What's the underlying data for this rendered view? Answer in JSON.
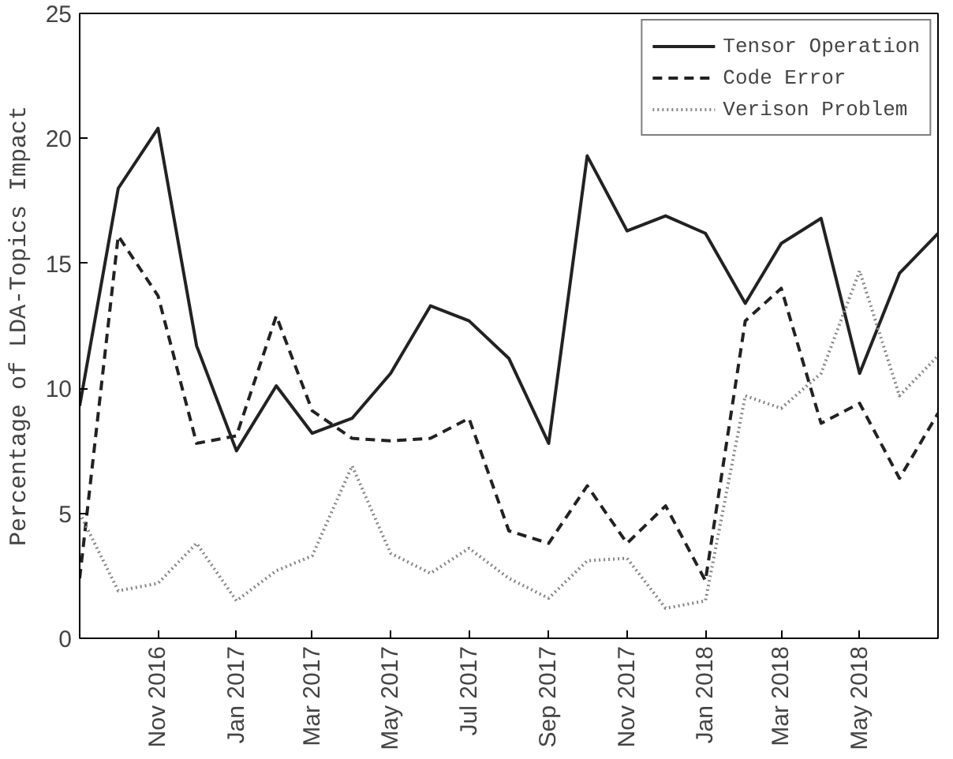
{
  "chart_data": {
    "type": "line",
    "ylabel": "Percentage of LDA-Topics Impact",
    "x": [
      "2016-09",
      "2016-10",
      "2016-11",
      "2016-12",
      "2017-01",
      "2017-02",
      "2017-03",
      "2017-04",
      "2017-05",
      "2017-06",
      "2017-07",
      "2017-08",
      "2017-09",
      "2017-10",
      "2017-11",
      "2017-12",
      "2018-01",
      "2018-02",
      "2018-03",
      "2018-04",
      "2018-05",
      "2018-06",
      "2018-07"
    ],
    "series": [
      {
        "name": "Tensor Operation",
        "color": "#222222",
        "line_style": "solid",
        "values": [
          9.3,
          18.0,
          20.4,
          11.7,
          7.5,
          10.1,
          8.2,
          8.8,
          10.6,
          13.3,
          12.7,
          11.2,
          7.8,
          19.3,
          16.3,
          16.9,
          16.2,
          13.4,
          15.8,
          16.8,
          10.6,
          14.6,
          16.2
        ]
      },
      {
        "name": "Code Error",
        "color": "#222222",
        "line_style": "dashed",
        "values": [
          2.4,
          16.1,
          13.7,
          7.8,
          8.1,
          12.9,
          9.1,
          8.0,
          7.9,
          8.0,
          8.8,
          4.3,
          3.8,
          6.1,
          3.8,
          5.3,
          2.3,
          12.7,
          14.0,
          8.6,
          9.4,
          6.4,
          9.0
        ]
      },
      {
        "name": "Verison Problem",
        "color": "#888888",
        "line_style": "dotted",
        "values": [
          5.0,
          1.9,
          2.2,
          3.8,
          1.5,
          2.7,
          3.3,
          6.9,
          3.4,
          2.6,
          3.6,
          2.4,
          1.6,
          3.1,
          3.2,
          1.2,
          1.5,
          9.7,
          9.2,
          10.6,
          14.7,
          9.7,
          11.3
        ]
      }
    ],
    "xlim": [
      "2016-09",
      "2018-07"
    ],
    "xticks": [
      {
        "value": "2016-11",
        "label": "Nov 2016"
      },
      {
        "value": "2017-01",
        "label": "Jan 2017"
      },
      {
        "value": "2017-03",
        "label": "Mar 2017"
      },
      {
        "value": "2017-05",
        "label": "May 2017"
      },
      {
        "value": "2017-07",
        "label": "Jul 2017"
      },
      {
        "value": "2017-09",
        "label": "Sep 2017"
      },
      {
        "value": "2017-11",
        "label": "Nov 2017"
      },
      {
        "value": "2018-01",
        "label": "Jan 2018"
      },
      {
        "value": "2018-03",
        "label": "Mar 2018"
      },
      {
        "value": "2018-05",
        "label": "May 2018"
      }
    ],
    "ylim": [
      0,
      25
    ],
    "yticks": [
      0,
      5,
      10,
      15,
      20,
      25
    ],
    "grid": false,
    "legend": "top right"
  }
}
